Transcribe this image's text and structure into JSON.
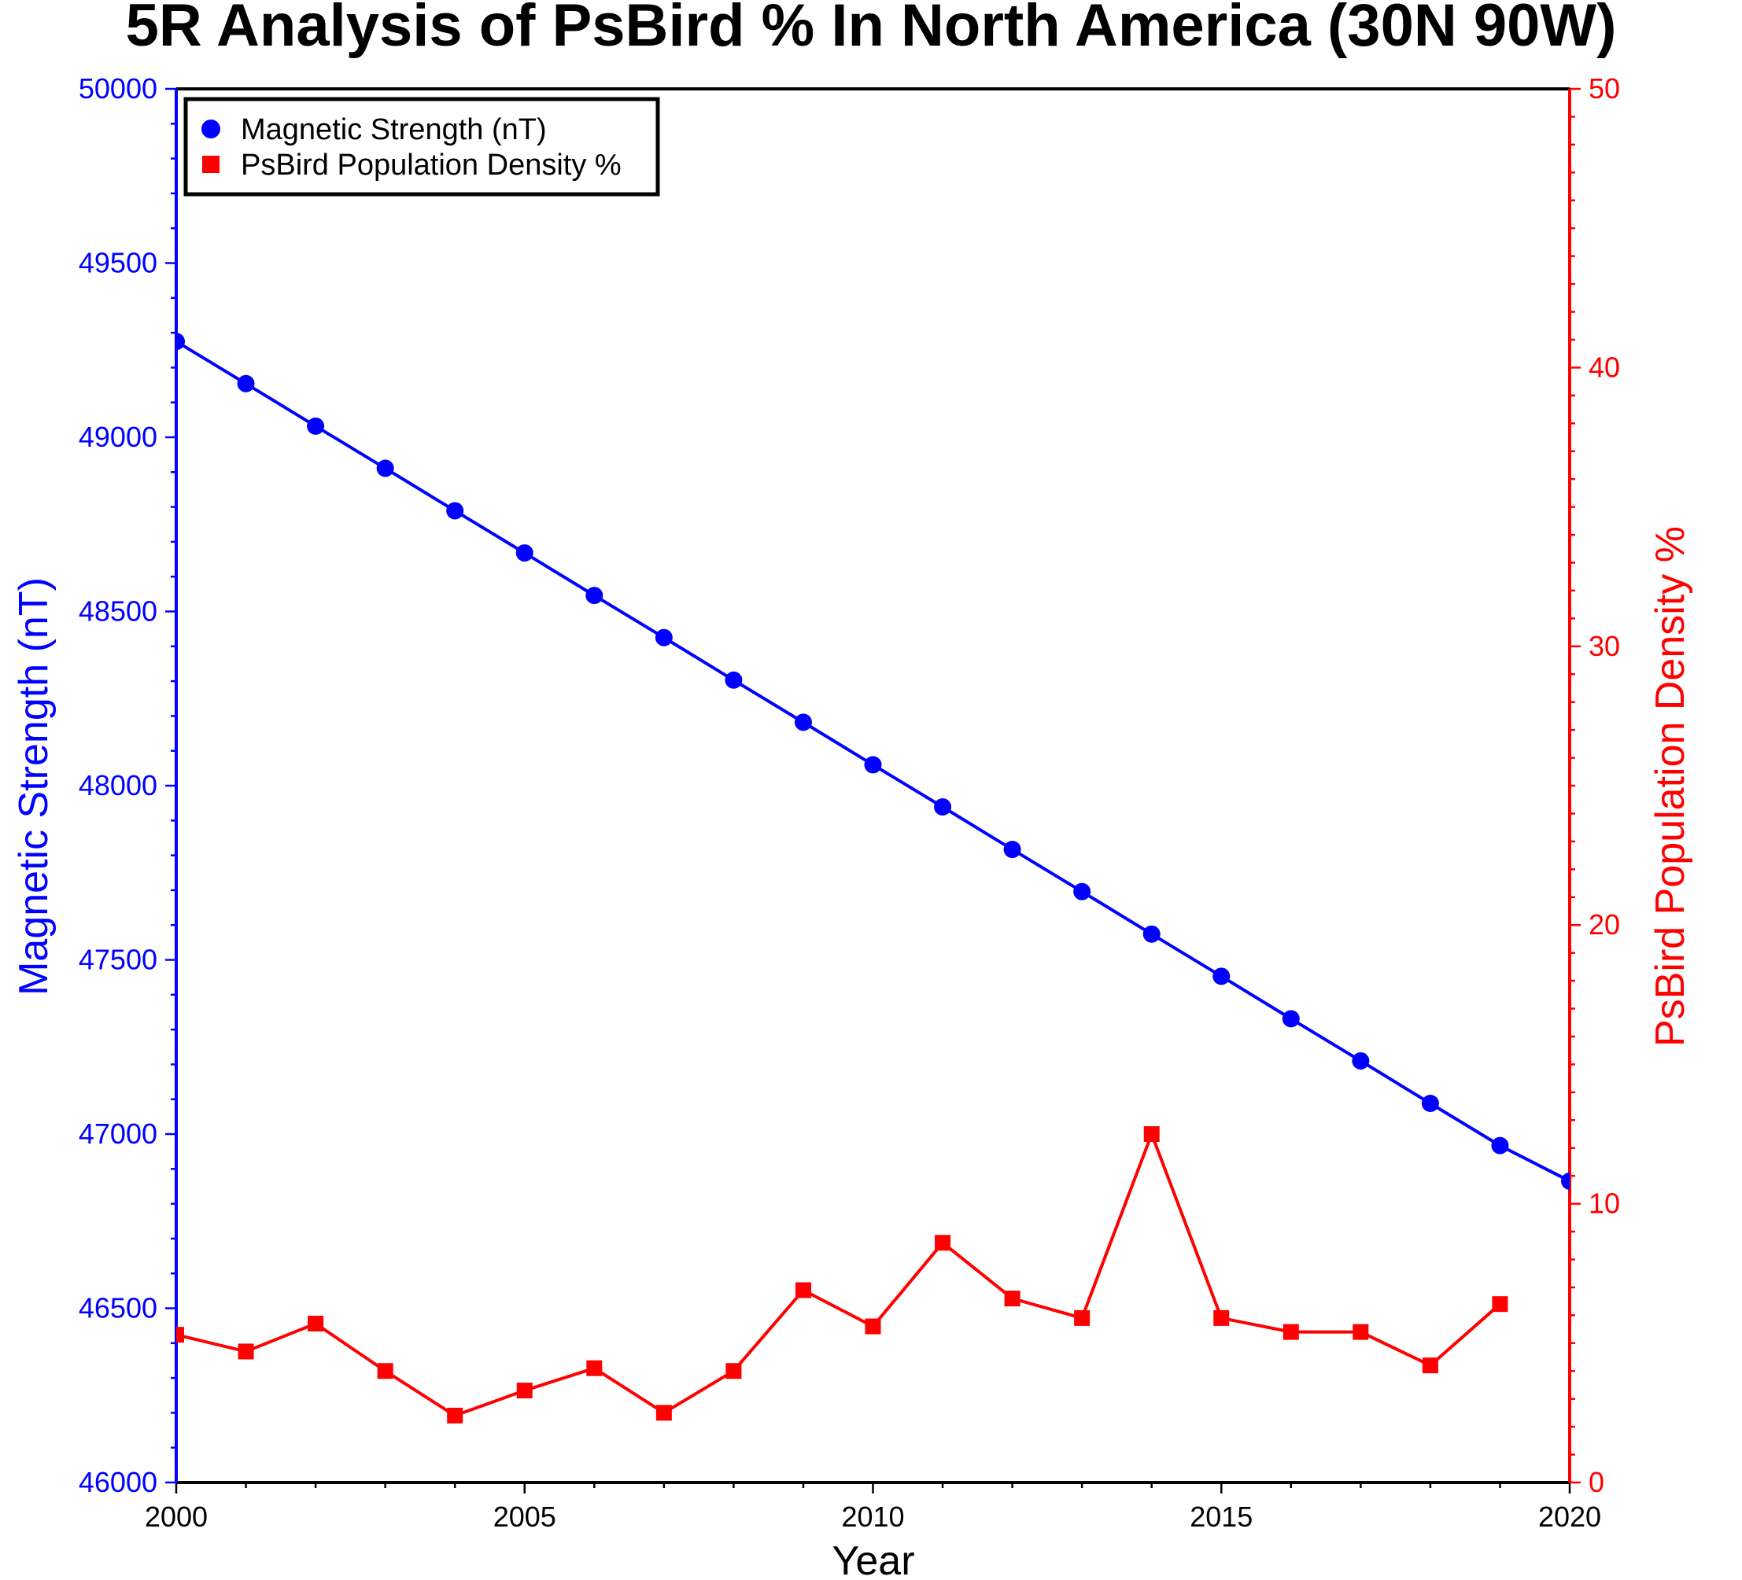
{
  "chart_data": {
    "type": "line",
    "title": "5R Analysis of PsBird % In North America (30N 90W)",
    "xlabel": "Year",
    "ylabel_left": "Magnetic Strength (nT)",
    "ylabel_right": "PsBird Population Density %",
    "xlim": [
      2000,
      2020
    ],
    "ylim_left": [
      46000,
      50000
    ],
    "ylim_right": [
      0,
      50
    ],
    "x_ticks": [
      "2000",
      "2005",
      "2010",
      "2015",
      "2020"
    ],
    "y_left_ticks": [
      "46000",
      "46500",
      "47000",
      "47500",
      "48000",
      "48500",
      "49000",
      "49500",
      "50000"
    ],
    "y_right_ticks": [
      "0",
      "10",
      "20",
      "30",
      "40",
      "50"
    ],
    "grid": false,
    "legend_position": "top-left",
    "colors": {
      "magnetic": "#0000ff",
      "psbird": "#ff0000",
      "axis": "#000000"
    },
    "series": [
      {
        "name": "Magnetic Strength (nT)",
        "axis": "left",
        "marker": "circle",
        "x": [
          2000,
          2001,
          2002,
          2003,
          2004,
          2005,
          2006,
          2007,
          2008,
          2009,
          2010,
          2011,
          2012,
          2013,
          2014,
          2015,
          2016,
          2017,
          2018,
          2019,
          2020
        ],
        "values": [
          49275,
          49154,
          49032,
          48911,
          48789,
          48668,
          48546,
          48425,
          48303,
          48182,
          48060,
          47939,
          47817,
          47696,
          47574,
          47453,
          47331,
          47210,
          47088,
          46967,
          46865
        ]
      },
      {
        "name": "PsBird Population Density %",
        "axis": "right",
        "marker": "square",
        "x": [
          2000,
          2001,
          2002,
          2003,
          2004,
          2005,
          2006,
          2007,
          2008,
          2009,
          2010,
          2011,
          2012,
          2013,
          2014,
          2015,
          2016,
          2017,
          2018,
          2019
        ],
        "values": [
          5.3,
          4.7,
          5.7,
          4.0,
          2.4,
          3.3,
          4.1,
          2.5,
          4.0,
          6.9,
          5.6,
          8.6,
          6.6,
          5.9,
          12.5,
          5.9,
          5.4,
          5.4,
          4.2,
          6.4
        ]
      }
    ]
  }
}
